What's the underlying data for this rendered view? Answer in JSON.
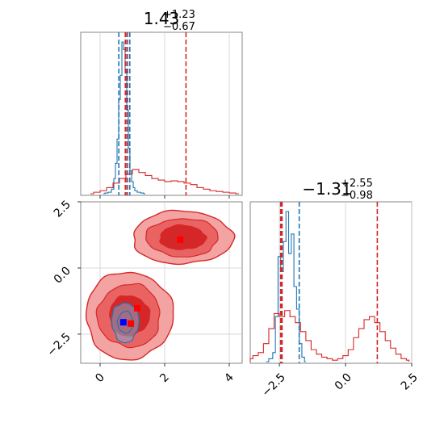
{
  "chart_data": [
    {
      "type": "histogram",
      "panel": "top-left marginal (parameter 1)",
      "title": {
        "main": "1.43",
        "sup": "+1.23",
        "sub": "−0.67"
      },
      "x_range": [
        -0.6,
        4.4
      ],
      "grid": true,
      "series": [
        {
          "name": "",
          "color": "#1f77b4",
          "x": [
            0.1,
            0.2,
            0.3,
            0.4,
            0.45,
            0.5,
            0.55,
            0.6,
            0.65,
            0.7,
            0.75,
            0.8,
            0.85,
            0.9,
            0.95,
            1.0,
            1.05,
            1.1,
            1.2,
            1.3,
            1.4
          ],
          "density": [
            0.0,
            0.005,
            0.01,
            0.03,
            0.1,
            0.2,
            0.36,
            0.62,
            0.78,
            1.0,
            0.95,
            0.82,
            0.55,
            0.3,
            0.15,
            0.08,
            0.04,
            0.02,
            0.01,
            0.005,
            0.0
          ],
          "markers": [
            0.58,
            0.8,
            0.92
          ]
        },
        {
          "name": "",
          "color": "#d62728",
          "x": [
            -0.3,
            -0.1,
            0.1,
            0.3,
            0.5,
            0.7,
            0.9,
            1.1,
            1.3,
            1.5,
            1.7,
            1.9,
            2.1,
            2.3,
            2.5,
            2.7,
            2.9,
            3.1,
            3.3,
            3.5,
            3.7,
            3.9,
            4.1,
            4.3
          ],
          "density": [
            0.0,
            0.01,
            0.02,
            0.04,
            0.07,
            0.1,
            0.13,
            0.16,
            0.14,
            0.12,
            0.1,
            0.09,
            0.08,
            0.085,
            0.08,
            0.07,
            0.06,
            0.04,
            0.03,
            0.02,
            0.015,
            0.01,
            0.005,
            0.0
          ],
          "markers": [
            0.78,
            0.85,
            2.66
          ]
        }
      ]
    },
    {
      "type": "contour",
      "panel": "bottom-left joint (parameter 1 vs parameter 2)",
      "x_ticks": [
        "0",
        "2",
        "4"
      ],
      "y_ticks": [
        "2.5",
        "0.0",
        "−2.5"
      ],
      "x_range": [
        -0.6,
        4.4
      ],
      "y_range": [
        -3.6,
        2.5
      ],
      "grid": true,
      "points": [
        {
          "series": "red",
          "color": "#ff0000",
          "x": 2.48,
          "y": 1.07
        },
        {
          "series": "red",
          "color": "#ff0000",
          "x": 1.15,
          "y": -1.52
        },
        {
          "series": "red",
          "color": "#ff0000",
          "x": 0.95,
          "y": -2.1
        },
        {
          "series": "blue",
          "color": "#0000ff",
          "x": 0.72,
          "y": -2.05
        }
      ],
      "red_regions": [
        {
          "cx": 2.55,
          "cy": 1.15,
          "rx": 1.55,
          "ry": 1.0
        },
        {
          "cx": 0.9,
          "cy": -1.8,
          "rx": 1.35,
          "ry": 1.65
        }
      ],
      "blue_region": {
        "cx": 0.78,
        "cy": -2.05,
        "rx": 0.42,
        "ry": 0.75
      }
    },
    {
      "type": "histogram",
      "panel": "bottom-right marginal (parameter 2)",
      "title": {
        "main": "−1.31",
        "sup": "+2.55",
        "sub": "−0.98"
      },
      "x_range": [
        -3.6,
        2.5
      ],
      "x_ticks": [
        "−2.5",
        "0.0",
        "2.5"
      ],
      "grid": true,
      "series": [
        {
          "name": "",
          "color": "#1f77b4",
          "x": [
            -3.0,
            -2.8,
            -2.7,
            -2.6,
            -2.5,
            -2.4,
            -2.3,
            -2.2,
            -2.1,
            -2.0,
            -1.9,
            -1.8,
            -1.7,
            -1.6,
            -1.5
          ],
          "density": [
            0.0,
            0.02,
            0.06,
            0.3,
            0.7,
            0.6,
            0.8,
            1.0,
            0.72,
            0.85,
            0.5,
            0.35,
            0.12,
            0.03,
            0.0
          ],
          "markers": [
            -2.45,
            -2.4,
            -1.75
          ]
        },
        {
          "name": "",
          "color": "#d62728",
          "x": [
            -3.6,
            -3.4,
            -3.2,
            -3.0,
            -2.8,
            -2.6,
            -2.4,
            -2.2,
            -2.0,
            -1.8,
            -1.6,
            -1.4,
            -1.2,
            -1.0,
            -0.8,
            -0.6,
            -0.4,
            -0.2,
            0.0,
            0.2,
            0.4,
            0.6,
            0.8,
            1.0,
            1.2,
            1.4,
            1.6,
            1.8,
            2.0,
            2.2,
            2.4
          ],
          "density": [
            0.02,
            0.04,
            0.06,
            0.12,
            0.22,
            0.32,
            0.3,
            0.34,
            0.3,
            0.26,
            0.2,
            0.14,
            0.08,
            0.05,
            0.03,
            0.02,
            0.01,
            0.02,
            0.04,
            0.08,
            0.16,
            0.22,
            0.28,
            0.3,
            0.26,
            0.2,
            0.14,
            0.09,
            0.05,
            0.02,
            0.01
          ],
          "markers": [
            -2.45,
            -2.4,
            1.2
          ]
        }
      ]
    }
  ],
  "tick_labels": {
    "top_x": [
      "0",
      "2",
      "4"
    ]
  }
}
